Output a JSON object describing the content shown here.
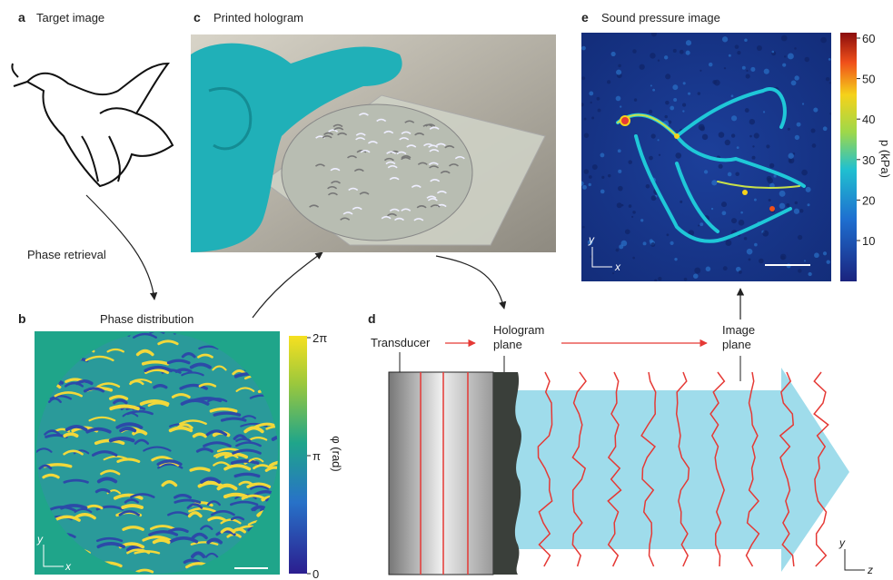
{
  "panels": {
    "a": {
      "letter": "a",
      "title": "Target image",
      "caption": "Phase retrieval"
    },
    "b": {
      "letter": "b",
      "title": "Phase distribution",
      "colorbar_label": "φ (rad)",
      "colorbar_ticks": [
        "2π",
        "π",
        "0"
      ],
      "axis_y": "y",
      "axis_x": "x"
    },
    "c": {
      "letter": "c",
      "title": "Printed hologram"
    },
    "d": {
      "letter": "d",
      "transducer": "Transducer",
      "hologram_plane": [
        "Hologram",
        "plane"
      ],
      "image_plane": [
        "Image",
        "plane"
      ],
      "axis_y": "y",
      "axis_z": "z"
    },
    "e": {
      "letter": "e",
      "title": "Sound pressure image",
      "colorbar_label": "p (kPa)",
      "colorbar_ticks": [
        60,
        50,
        40,
        30,
        20,
        10
      ],
      "axis_y": "y",
      "axis_x": "x"
    }
  }
}
